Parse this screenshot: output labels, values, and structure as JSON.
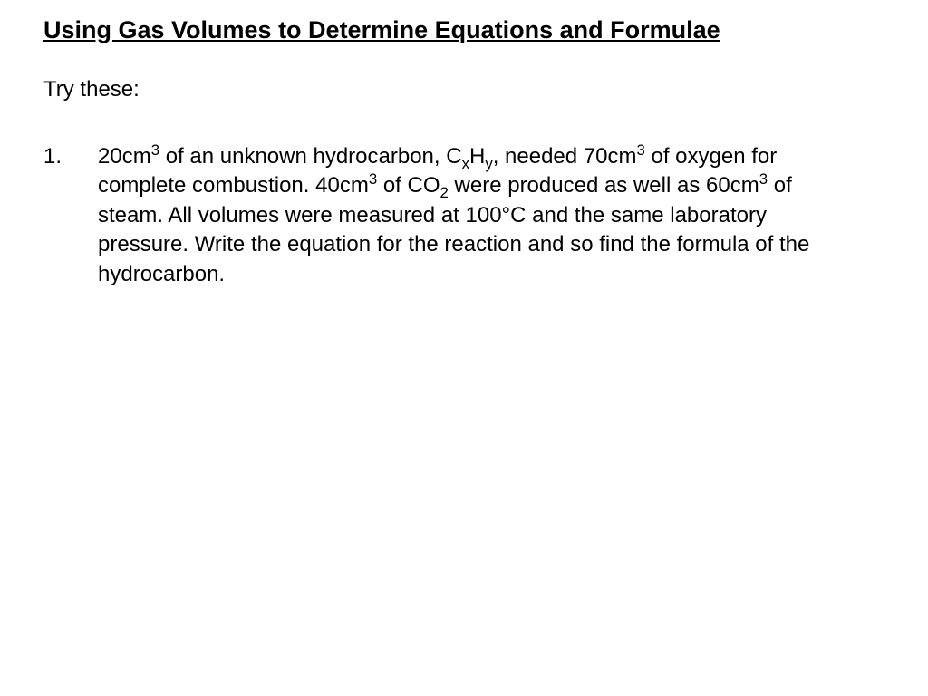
{
  "title": "Using Gas Volumes to Determine Equations and Formulae",
  "intro": "Try these:",
  "questions": [
    {
      "number": "1.",
      "segments": [
        {
          "t": "20cm"
        },
        {
          "t": "3",
          "sup": true
        },
        {
          "t": " of an unknown hydrocarbon, C"
        },
        {
          "t": "x",
          "sub": true
        },
        {
          "t": "H"
        },
        {
          "t": "y",
          "sub": true
        },
        {
          "t": ", needed 70cm"
        },
        {
          "t": "3",
          "sup": true
        },
        {
          "t": " of oxygen for complete combustion. 40cm"
        },
        {
          "t": "3",
          "sup": true
        },
        {
          "t": " of CO"
        },
        {
          "t": "2",
          "sub": true
        },
        {
          "t": " were produced as well as 60cm"
        },
        {
          "t": "3",
          "sup": true
        },
        {
          "t": " of steam. All volumes were measured at 100°C and the same laboratory pressure. Write the equation for the reaction and so find the formula of the hydrocarbon."
        }
      ]
    }
  ],
  "colors": {
    "background": "#ffffff",
    "text": "#000000"
  },
  "typography": {
    "font_family": "Arial",
    "title_fontsize": 27,
    "body_fontsize": 24,
    "title_weight": "bold"
  }
}
